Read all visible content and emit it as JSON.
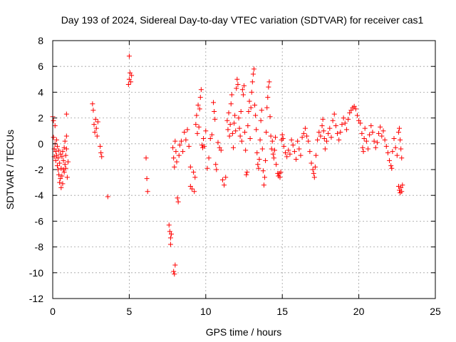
{
  "chart_data": {
    "type": "scatter",
    "title": "Day 193 of 2024, Sidereal Day-to-day VTEC variation (SDTVAR) for receiver cas1",
    "xlabel": "GPS time / hours",
    "ylabel": "SDTVAR / TECUs",
    "xlim": [
      0,
      25
    ],
    "ylim": [
      -12,
      8
    ],
    "xticks": [
      0,
      5,
      10,
      15,
      20,
      25
    ],
    "yticks": [
      -12,
      -10,
      -8,
      -6,
      -4,
      -2,
      0,
      2,
      4,
      6,
      8
    ],
    "xtick_labels": [
      "0",
      "5",
      "10",
      "15",
      "20",
      "25"
    ],
    "ytick_labels": [
      "-12",
      "-10",
      "-8",
      "-6",
      "-4",
      "-2",
      "0",
      "2",
      "4",
      "6",
      "8"
    ],
    "grid": true,
    "marker": "+",
    "color": "#ff0000",
    "series": [
      {
        "name": "SDTVAR",
        "points": [
          [
            0.0,
            2.1
          ],
          [
            0.05,
            1.8
          ],
          [
            0.05,
            0.5
          ],
          [
            0.1,
            -0.4
          ],
          [
            0.1,
            -1.0
          ],
          [
            0.15,
            1.4
          ],
          [
            0.15,
            0.0
          ],
          [
            0.2,
            -0.6
          ],
          [
            0.2,
            -1.3
          ],
          [
            0.25,
            0.3
          ],
          [
            0.25,
            -0.9
          ],
          [
            0.3,
            -1.7
          ],
          [
            0.3,
            -0.2
          ],
          [
            0.35,
            -1.1
          ],
          [
            0.35,
            -2.0
          ],
          [
            0.4,
            -0.5
          ],
          [
            0.4,
            -2.4
          ],
          [
            0.45,
            -1.5
          ],
          [
            0.45,
            -3.0
          ],
          [
            0.5,
            -0.8
          ],
          [
            0.5,
            -2.7
          ],
          [
            0.55,
            -3.4
          ],
          [
            0.55,
            -1.9
          ],
          [
            0.6,
            -1.0
          ],
          [
            0.6,
            -2.5
          ],
          [
            0.65,
            -0.6
          ],
          [
            0.65,
            -3.1
          ],
          [
            0.7,
            -2.0
          ],
          [
            0.7,
            -1.3
          ],
          [
            0.75,
            -0.3
          ],
          [
            0.75,
            -2.2
          ],
          [
            0.8,
            -1.6
          ],
          [
            0.8,
            0.2
          ],
          [
            0.85,
            -0.9
          ],
          [
            0.85,
            -1.9
          ],
          [
            0.9,
            0.6
          ],
          [
            0.9,
            -0.4
          ],
          [
            0.95,
            -2.6
          ],
          [
            0.9,
            2.3
          ],
          [
            1.0,
            -1.4
          ],
          [
            2.6,
            3.1
          ],
          [
            2.65,
            2.6
          ],
          [
            2.7,
            1.5
          ],
          [
            2.75,
            0.9
          ],
          [
            2.8,
            1.9
          ],
          [
            2.85,
            1.2
          ],
          [
            2.9,
            0.6
          ],
          [
            2.95,
            1.7
          ],
          [
            3.1,
            -0.2
          ],
          [
            3.15,
            -0.7
          ],
          [
            3.2,
            -1.0
          ],
          [
            3.6,
            -4.1
          ],
          [
            4.95,
            4.6
          ],
          [
            5.0,
            5.0
          ],
          [
            5.05,
            5.5
          ],
          [
            5.1,
            4.8
          ],
          [
            5.15,
            5.3
          ],
          [
            5.0,
            6.8
          ],
          [
            6.1,
            -1.1
          ],
          [
            6.15,
            -2.7
          ],
          [
            6.2,
            -3.7
          ],
          [
            7.6,
            -6.3
          ],
          [
            7.65,
            -6.8
          ],
          [
            7.7,
            -7.3
          ],
          [
            7.7,
            -7.8
          ],
          [
            7.75,
            -7.0
          ],
          [
            7.9,
            -9.9
          ],
          [
            7.95,
            -10.1
          ],
          [
            8.0,
            -9.4
          ],
          [
            7.85,
            -0.3
          ],
          [
            7.9,
            -1.1
          ],
          [
            7.95,
            -1.8
          ],
          [
            8.0,
            0.2
          ],
          [
            8.05,
            -0.6
          ],
          [
            8.1,
            -1.4
          ],
          [
            8.15,
            -4.2
          ],
          [
            8.2,
            -4.5
          ],
          [
            8.25,
            -0.9
          ],
          [
            8.3,
            -0.1
          ],
          [
            8.4,
            0.2
          ],
          [
            8.5,
            -0.6
          ],
          [
            8.6,
            0.9
          ],
          [
            8.7,
            0.3
          ],
          [
            8.8,
            1.1
          ],
          [
            8.9,
            -0.2
          ],
          [
            9.0,
            -1.8
          ],
          [
            9.0,
            -3.3
          ],
          [
            9.1,
            -3.5
          ],
          [
            9.2,
            -2.2
          ],
          [
            9.25,
            -3.7
          ],
          [
            9.3,
            -2.6
          ],
          [
            9.35,
            1.5
          ],
          [
            9.4,
            2.2
          ],
          [
            9.45,
            0.8
          ],
          [
            9.5,
            3.0
          ],
          [
            9.55,
            1.3
          ],
          [
            9.6,
            2.7
          ],
          [
            9.65,
            3.6
          ],
          [
            9.7,
            4.2
          ],
          [
            9.75,
            -0.1
          ],
          [
            9.8,
            -0.3
          ],
          [
            9.85,
            0.4
          ],
          [
            9.9,
            -0.2
          ],
          [
            10.0,
            1.0
          ],
          [
            10.1,
            -1.9
          ],
          [
            10.2,
            -1.1
          ],
          [
            10.3,
            0.4
          ],
          [
            10.4,
            0.7
          ],
          [
            10.5,
            3.2
          ],
          [
            10.55,
            2.5
          ],
          [
            10.6,
            1.9
          ],
          [
            10.65,
            -1.6
          ],
          [
            10.7,
            -2.0
          ],
          [
            10.8,
            0.1
          ],
          [
            10.9,
            -0.3
          ],
          [
            11.0,
            -0.5
          ],
          [
            11.1,
            -2.8
          ],
          [
            11.2,
            -3.2
          ],
          [
            11.3,
            -2.6
          ],
          [
            11.4,
            1.8
          ],
          [
            11.45,
            1.1
          ],
          [
            11.5,
            2.4
          ],
          [
            11.55,
            0.6
          ],
          [
            11.6,
            1.5
          ],
          [
            11.65,
            3.1
          ],
          [
            11.7,
            3.8
          ],
          [
            11.75,
            0.8
          ],
          [
            11.8,
            -0.3
          ],
          [
            11.85,
            1.6
          ],
          [
            11.9,
            2.2
          ],
          [
            11.95,
            1.0
          ],
          [
            12.0,
            4.3
          ],
          [
            12.05,
            5.0
          ],
          [
            12.1,
            4.6
          ],
          [
            12.15,
            2.0
          ],
          [
            12.2,
            1.2
          ],
          [
            12.25,
            0.6
          ],
          [
            12.3,
            2.5
          ],
          [
            12.35,
            0.2
          ],
          [
            12.4,
            4.2
          ],
          [
            12.45,
            3.8
          ],
          [
            12.5,
            4.5
          ],
          [
            12.55,
            0.9
          ],
          [
            12.6,
            -0.5
          ],
          [
            12.65,
            -2.4
          ],
          [
            12.7,
            -2.2
          ],
          [
            12.75,
            1.4
          ],
          [
            12.8,
            2.5
          ],
          [
            12.85,
            3.3
          ],
          [
            12.9,
            0.4
          ],
          [
            12.95,
            2.8
          ],
          [
            13.0,
            4.0
          ],
          [
            13.05,
            4.8
          ],
          [
            13.1,
            5.4
          ],
          [
            13.15,
            5.8
          ],
          [
            13.2,
            3.0
          ],
          [
            13.25,
            2.2
          ],
          [
            13.3,
            1.1
          ],
          [
            13.35,
            -0.7
          ],
          [
            13.4,
            -1.6
          ],
          [
            13.45,
            -1.9
          ],
          [
            13.5,
            -1.2
          ],
          [
            13.55,
            0.3
          ],
          [
            13.6,
            1.8
          ],
          [
            13.65,
            2.6
          ],
          [
            13.7,
            -0.4
          ],
          [
            13.75,
            -2.1
          ],
          [
            13.8,
            -3.2
          ],
          [
            13.85,
            -2.6
          ],
          [
            13.9,
            -1.3
          ],
          [
            13.95,
            0.9
          ],
          [
            14.0,
            2.8
          ],
          [
            14.05,
            3.6
          ],
          [
            14.1,
            4.4
          ],
          [
            14.15,
            4.8
          ],
          [
            14.2,
            2.1
          ],
          [
            14.25,
            0.6
          ],
          [
            14.3,
            -0.4
          ],
          [
            14.35,
            0.2
          ],
          [
            14.4,
            -0.8
          ],
          [
            14.45,
            -1.1
          ],
          [
            14.5,
            -0.5
          ],
          [
            14.55,
            0.5
          ],
          [
            14.6,
            -1.6
          ],
          [
            14.7,
            -2.3
          ],
          [
            14.75,
            -2.5
          ],
          [
            14.8,
            -2.3
          ],
          [
            14.85,
            -2.6
          ],
          [
            14.9,
            -2.2
          ],
          [
            14.95,
            0.3
          ],
          [
            15.0,
            0.7
          ],
          [
            15.05,
            0.4
          ],
          [
            15.1,
            -0.2
          ],
          [
            15.2,
            -0.7
          ],
          [
            15.3,
            -1.0
          ],
          [
            15.4,
            -0.5
          ],
          [
            15.5,
            -0.8
          ],
          [
            15.6,
            0.3
          ],
          [
            15.7,
            -0.1
          ],
          [
            15.8,
            -0.6
          ],
          [
            15.9,
            -1.2
          ],
          [
            16.0,
            0.2
          ],
          [
            16.1,
            -0.4
          ],
          [
            16.2,
            -0.9
          ],
          [
            16.3,
            0.5
          ],
          [
            16.4,
            0.8
          ],
          [
            16.5,
            1.2
          ],
          [
            16.6,
            0.6
          ],
          [
            16.7,
            0.2
          ],
          [
            16.8,
            -0.6
          ],
          [
            16.9,
            -1.5
          ],
          [
            17.0,
            -2.0
          ],
          [
            17.05,
            -2.3
          ],
          [
            17.1,
            -2.6
          ],
          [
            17.15,
            -1.8
          ],
          [
            17.2,
            -0.9
          ],
          [
            17.3,
            0.3
          ],
          [
            17.4,
            0.9
          ],
          [
            17.5,
            0.6
          ],
          [
            17.6,
            1.4
          ],
          [
            17.65,
            1.9
          ],
          [
            17.7,
            1.0
          ],
          [
            17.75,
            0.4
          ],
          [
            17.8,
            -0.4
          ],
          [
            17.9,
            0.2
          ],
          [
            18.0,
            0.8
          ],
          [
            18.1,
            1.2
          ],
          [
            18.2,
            0.5
          ],
          [
            18.3,
            1.8
          ],
          [
            18.4,
            2.3
          ],
          [
            18.5,
            1.4
          ],
          [
            18.6,
            0.8
          ],
          [
            18.7,
            0.3
          ],
          [
            18.8,
            0.9
          ],
          [
            18.9,
            1.5
          ],
          [
            19.0,
            2.0
          ],
          [
            19.1,
            1.6
          ],
          [
            19.2,
            1.1
          ],
          [
            19.3,
            1.9
          ],
          [
            19.4,
            2.4
          ],
          [
            19.5,
            2.6
          ],
          [
            19.6,
            2.8
          ],
          [
            19.7,
            2.9
          ],
          [
            19.8,
            2.7
          ],
          [
            19.9,
            2.2
          ],
          [
            20.0,
            1.8
          ],
          [
            20.1,
            1.6
          ],
          [
            20.2,
            0.8
          ],
          [
            20.25,
            -0.3
          ],
          [
            20.3,
            -0.6
          ],
          [
            20.35,
            0.4
          ],
          [
            20.4,
            1.2
          ],
          [
            20.5,
            0.2
          ],
          [
            20.6,
            -0.4
          ],
          [
            20.7,
            0.7
          ],
          [
            20.8,
            1.4
          ],
          [
            20.9,
            0.9
          ],
          [
            21.0,
            0.2
          ],
          [
            21.1,
            -0.3
          ],
          [
            21.2,
            0.1
          ],
          [
            21.3,
            0.8
          ],
          [
            21.4,
            1.3
          ],
          [
            21.5,
            0.6
          ],
          [
            21.6,
            1.0
          ],
          [
            21.7,
            0.3
          ],
          [
            21.8,
            -0.2
          ],
          [
            21.9,
            -0.7
          ],
          [
            22.0,
            -1.3
          ],
          [
            22.1,
            -1.7
          ],
          [
            22.15,
            -1.9
          ],
          [
            22.2,
            -0.6
          ],
          [
            22.3,
            0.4
          ],
          [
            22.4,
            -0.3
          ],
          [
            22.5,
            -0.9
          ],
          [
            22.6,
            0.9
          ],
          [
            22.65,
            1.2
          ],
          [
            22.7,
            0.3
          ],
          [
            22.75,
            -0.4
          ],
          [
            22.8,
            -1.1
          ],
          [
            22.6,
            -3.3
          ],
          [
            22.65,
            -3.6
          ],
          [
            22.7,
            -3.8
          ],
          [
            22.75,
            -3.4
          ],
          [
            22.8,
            -3.7
          ],
          [
            22.85,
            -3.2
          ]
        ]
      }
    ]
  }
}
